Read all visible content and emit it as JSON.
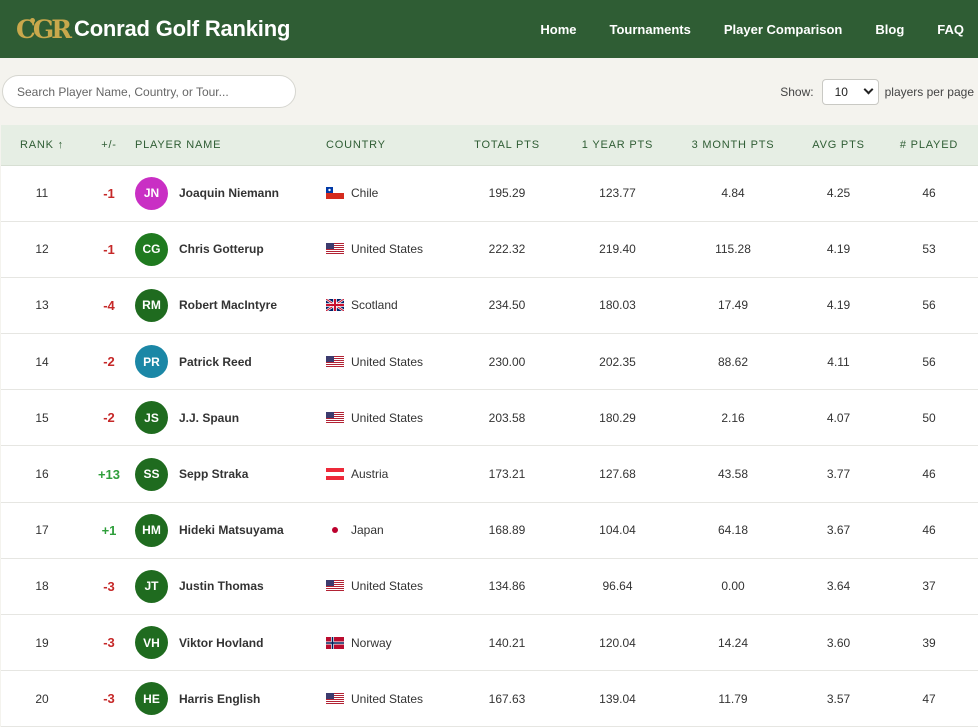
{
  "header": {
    "logo_text": "CGR",
    "site_title": "Conrad Golf Ranking",
    "nav": [
      {
        "label": "Home"
      },
      {
        "label": "Tournaments"
      },
      {
        "label": "Player Comparison"
      },
      {
        "label": "Blog"
      },
      {
        "label": "FAQ"
      }
    ]
  },
  "controls": {
    "search_placeholder": "Search Player Name, Country, or Tour...",
    "show_label": "Show:",
    "per_page_value": "10",
    "per_page_suffix": "players per page"
  },
  "table": {
    "columns": [
      "RANK ↑",
      "+/-",
      "PLAYER NAME",
      "COUNTRY",
      "TOTAL PTS",
      "1 YEAR PTS",
      "3 MONTH PTS",
      "AVG PTS",
      "# PLAYED"
    ],
    "rows": [
      {
        "rank": "11",
        "change": "-1",
        "trend": "down",
        "initials": "JN",
        "avatar_color": "#c92fc4",
        "name": "Joaquin Niemann",
        "flag": "chile",
        "country": "Chile",
        "total": "195.29",
        "year": "123.77",
        "month3": "4.84",
        "avg": "4.25",
        "played": "46"
      },
      {
        "rank": "12",
        "change": "-1",
        "trend": "down",
        "initials": "CG",
        "avatar_color": "#1f7a1f",
        "name": "Chris Gotterup",
        "flag": "us",
        "country": "United States",
        "total": "222.32",
        "year": "219.40",
        "month3": "115.28",
        "avg": "4.19",
        "played": "53"
      },
      {
        "rank": "13",
        "change": "-4",
        "trend": "down",
        "initials": "RM",
        "avatar_color": "#1f6b1f",
        "name": "Robert MacIntyre",
        "flag": "uk",
        "country": "Scotland",
        "total": "234.50",
        "year": "180.03",
        "month3": "17.49",
        "avg": "4.19",
        "played": "56"
      },
      {
        "rank": "14",
        "change": "-2",
        "trend": "down",
        "initials": "PR",
        "avatar_color": "#1b87a6",
        "name": "Patrick Reed",
        "flag": "us",
        "country": "United States",
        "total": "230.00",
        "year": "202.35",
        "month3": "88.62",
        "avg": "4.11",
        "played": "56"
      },
      {
        "rank": "15",
        "change": "-2",
        "trend": "down",
        "initials": "JS",
        "avatar_color": "#1f6b1f",
        "name": "J.J. Spaun",
        "flag": "us",
        "country": "United States",
        "total": "203.58",
        "year": "180.29",
        "month3": "2.16",
        "avg": "4.07",
        "played": "50"
      },
      {
        "rank": "16",
        "change": "+13",
        "trend": "up",
        "initials": "SS",
        "avatar_color": "#1f6b1f",
        "name": "Sepp Straka",
        "flag": "austria",
        "country": "Austria",
        "total": "173.21",
        "year": "127.68",
        "month3": "43.58",
        "avg": "3.77",
        "played": "46"
      },
      {
        "rank": "17",
        "change": "+1",
        "trend": "up",
        "initials": "HM",
        "avatar_color": "#1f6b1f",
        "name": "Hideki Matsuyama",
        "flag": "japan",
        "country": "Japan",
        "total": "168.89",
        "year": "104.04",
        "month3": "64.18",
        "avg": "3.67",
        "played": "46"
      },
      {
        "rank": "18",
        "change": "-3",
        "trend": "down",
        "initials": "JT",
        "avatar_color": "#1f6b1f",
        "name": "Justin Thomas",
        "flag": "us",
        "country": "United States",
        "total": "134.86",
        "year": "96.64",
        "month3": "0.00",
        "avg": "3.64",
        "played": "37"
      },
      {
        "rank": "19",
        "change": "-3",
        "trend": "down",
        "initials": "VH",
        "avatar_color": "#1f6b1f",
        "name": "Viktor Hovland",
        "flag": "norway",
        "country": "Norway",
        "total": "140.21",
        "year": "120.04",
        "month3": "14.24",
        "avg": "3.60",
        "played": "39"
      },
      {
        "rank": "20",
        "change": "-3",
        "trend": "down",
        "initials": "HE",
        "avatar_color": "#1f6b1f",
        "name": "Harris English",
        "flag": "us",
        "country": "United States",
        "total": "167.63",
        "year": "139.04",
        "month3": "11.79",
        "avg": "3.57",
        "played": "47"
      }
    ]
  },
  "colors": {
    "brand_green": "#2f5d34",
    "gold": "#c9a84c",
    "negative": "#c62828",
    "positive": "#2e9e3a"
  }
}
